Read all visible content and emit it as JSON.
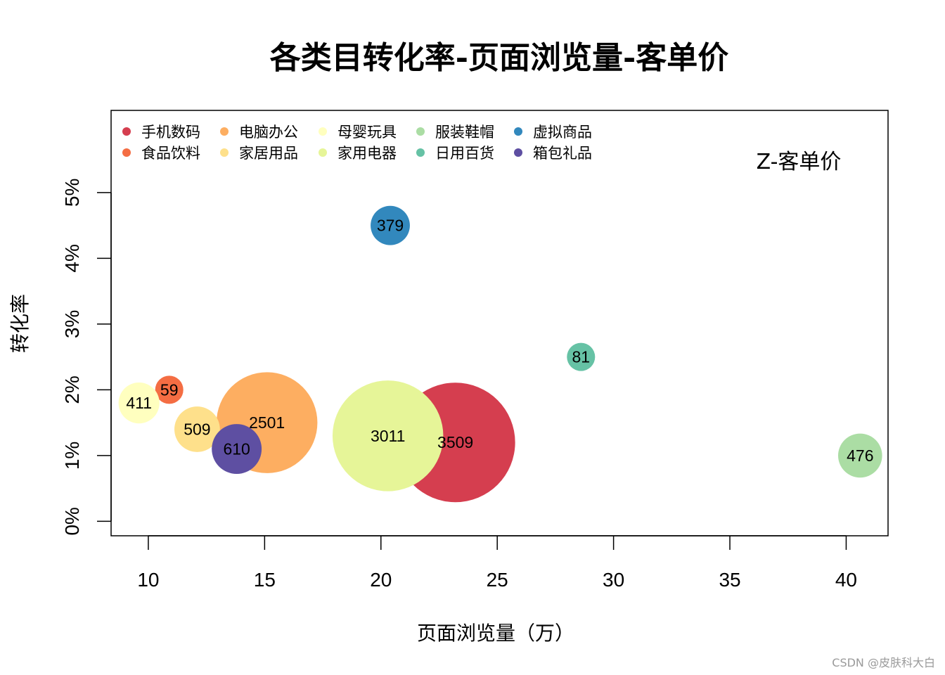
{
  "chart_data": {
    "type": "scatter",
    "subtype": "bubble",
    "title": "各类目转化率-页面浏览量-客单价",
    "xlabel": "页面浏览量（万）",
    "ylabel": "转化率",
    "annotation": "Z-客单价",
    "xlim": [
      8.4,
      41.8
    ],
    "ylim": [
      -0.0022,
      0.0625
    ],
    "x_ticks": [
      10,
      15,
      20,
      25,
      30,
      35,
      40
    ],
    "x_tick_labels": [
      "10",
      "15",
      "20",
      "25",
      "30",
      "35",
      "40"
    ],
    "y_ticks": [
      0,
      0.01,
      0.02,
      0.03,
      0.04,
      0.05
    ],
    "y_tick_labels": [
      "0%",
      "1%",
      "2%",
      "3%",
      "4%",
      "5%"
    ],
    "legend": {
      "position": "top-left",
      "columns": 5
    },
    "series": [
      {
        "name": "手机数码",
        "x": 23.2,
        "y": 0.012,
        "size": 3509,
        "label": "3509",
        "color": "#D53E4F"
      },
      {
        "name": "食品饮料",
        "x": 10.9,
        "y": 0.02,
        "size": 59,
        "label": "59",
        "color": "#F46D43"
      },
      {
        "name": "电脑办公",
        "x": 15.1,
        "y": 0.015,
        "size": 2501,
        "label": "2501",
        "color": "#FDAE61"
      },
      {
        "name": "家居用品",
        "x": 12.1,
        "y": 0.014,
        "size": 509,
        "label": "509",
        "color": "#FEE08B"
      },
      {
        "name": "母婴玩具",
        "x": 9.6,
        "y": 0.018,
        "size": 411,
        "label": "411",
        "color": "#FFFFBF"
      },
      {
        "name": "家用电器",
        "x": 20.3,
        "y": 0.013,
        "size": 3011,
        "label": "3011",
        "color": "#E6F598"
      },
      {
        "name": "服装鞋帽",
        "x": 40.6,
        "y": 0.01,
        "size": 476,
        "label": "476",
        "color": "#ABDDA4"
      },
      {
        "name": "日用百货",
        "x": 28.6,
        "y": 0.025,
        "size": 81,
        "label": "81",
        "color": "#66C2A5"
      },
      {
        "name": "虚拟商品",
        "x": 20.4,
        "y": 0.045,
        "size": 379,
        "label": "379",
        "color": "#3288BD"
      },
      {
        "name": "箱包礼品",
        "x": 13.8,
        "y": 0.011,
        "size": 610,
        "label": "610",
        "color": "#5E4FA2"
      }
    ]
  },
  "watermark": "CSDN @皮肤科大白"
}
